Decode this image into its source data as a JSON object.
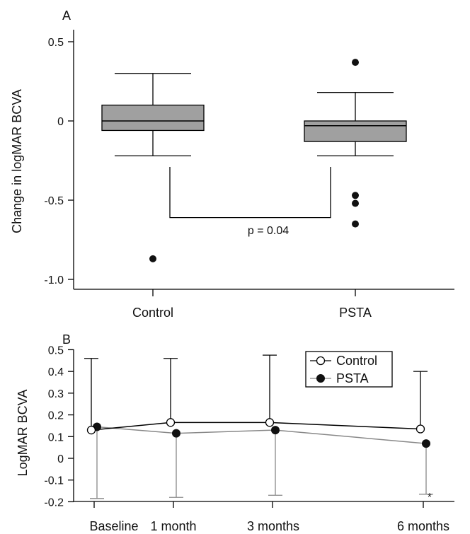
{
  "chart_data": [
    {
      "panel_label": "A",
      "type": "box",
      "ylabel": "Change in logMAR BCVA",
      "ylim": [
        -1.1,
        0.55
      ],
      "yticks": [
        0.5,
        0,
        -0.5,
        -1.0
      ],
      "ytick_labels": [
        "0.5",
        "0",
        "-0.5",
        "-1.0"
      ],
      "categories": [
        "Control",
        "PSTA"
      ],
      "boxes": [
        {
          "name": "Control",
          "whisker_low": -0.22,
          "q1": -0.06,
          "median": 0.0,
          "q3": 0.1,
          "whisker_high": 0.3,
          "outliers": [
            -0.87
          ]
        },
        {
          "name": "PSTA",
          "whisker_low": -0.22,
          "q1": -0.13,
          "median": -0.03,
          "q3": 0.0,
          "whisker_high": 0.18,
          "outliers": [
            0.37,
            -0.47,
            -0.52,
            -0.65
          ]
        }
      ],
      "box_color": "#a0a0a0",
      "comparison": {
        "groups": [
          "Control",
          "PSTA"
        ],
        "y": -0.61,
        "label": "p = 0.04"
      }
    },
    {
      "panel_label": "B",
      "type": "line",
      "ylabel": "LogMAR BCVA",
      "ylim": [
        -0.2,
        0.5
      ],
      "yticks": [
        0.5,
        0.4,
        0.3,
        0.2,
        0.1,
        0,
        -0.1,
        -0.2
      ],
      "ytick_labels": [
        "0.5",
        "0.4",
        "0.3",
        "0.2",
        "0.1",
        "0",
        "-0.1",
        "-0.2"
      ],
      "x_labels": [
        "Baseline",
        "1 month",
        "3 months",
        "6 months"
      ],
      "x": [
        0,
        1,
        3,
        6
      ],
      "series": [
        {
          "name": "Control",
          "marker": "open-circle",
          "color": "#000000",
          "values": [
            0.13,
            0.165,
            0.165,
            0.135
          ],
          "error_upper": [
            0.46,
            0.46,
            0.475,
            0.4
          ]
        },
        {
          "name": "PSTA",
          "marker": "filled-circle",
          "color": "#888888",
          "values": [
            0.145,
            0.115,
            0.13,
            0.068
          ],
          "error_lower": [
            -0.185,
            -0.18,
            -0.17,
            -0.165
          ]
        }
      ],
      "annotations": [
        {
          "x": 6,
          "text": "*"
        }
      ],
      "legend_position": "top-right"
    }
  ]
}
